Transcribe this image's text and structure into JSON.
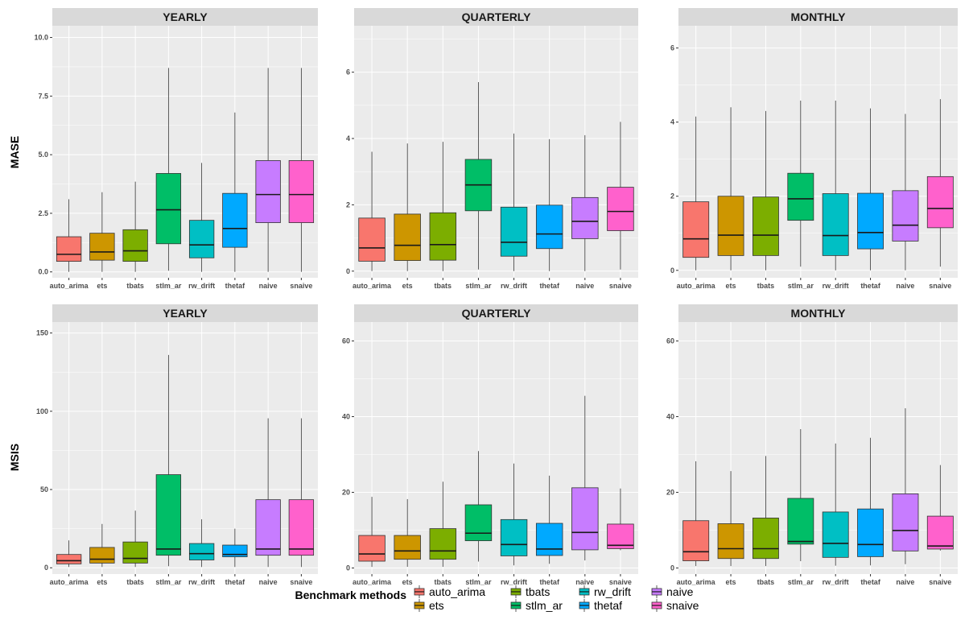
{
  "legend": {
    "title": "Benchmark methods",
    "items": [
      {
        "name": "auto_arima",
        "color": "#F8766D"
      },
      {
        "name": "ets",
        "color": "#CD9600"
      },
      {
        "name": "tbats",
        "color": "#7CAE00"
      },
      {
        "name": "stlm_ar",
        "color": "#00BE67"
      },
      {
        "name": "rw_drift",
        "color": "#00BFC4"
      },
      {
        "name": "thetaf",
        "color": "#00A9FF"
      },
      {
        "name": "naive",
        "color": "#C77CFF"
      },
      {
        "name": "snaive",
        "color": "#FF61CC"
      }
    ]
  },
  "style": {
    "panel_bg": "#EBEBEB",
    "strip_bg": "#D9D9D9",
    "grid_color": "#FFFFFF"
  },
  "chart_data": [
    {
      "type": "boxplot",
      "row_label": "MASE",
      "title": "YEARLY",
      "categories": [
        "auto_arima",
        "ets",
        "tbats",
        "stlm_ar",
        "rw_drift",
        "thetaf",
        "naive",
        "snaive"
      ],
      "ylim": [
        -0.25,
        10.5
      ],
      "yticks": [
        0,
        2.5,
        5,
        7.5,
        10
      ],
      "ytick_labels": [
        "0.0",
        "2.5",
        "5.0",
        "7.5",
        "10.0"
      ],
      "boxes": [
        {
          "lower": 0.0,
          "q1": 0.45,
          "median": 0.75,
          "q3": 1.5,
          "upper": 3.1
        },
        {
          "lower": 0.0,
          "q1": 0.5,
          "median": 0.85,
          "q3": 1.65,
          "upper": 3.4
        },
        {
          "lower": 0.0,
          "q1": 0.45,
          "median": 0.9,
          "q3": 1.8,
          "upper": 3.85
        },
        {
          "lower": 0.05,
          "q1": 1.2,
          "median": 2.65,
          "q3": 4.2,
          "upper": 8.7
        },
        {
          "lower": 0.0,
          "q1": 0.6,
          "median": 1.15,
          "q3": 2.2,
          "upper": 4.65
        },
        {
          "lower": 0.0,
          "q1": 1.05,
          "median": 1.85,
          "q3": 3.35,
          "upper": 6.8
        },
        {
          "lower": 0.0,
          "q1": 2.1,
          "median": 3.3,
          "q3": 4.75,
          "upper": 8.7
        },
        {
          "lower": 0.0,
          "q1": 2.1,
          "median": 3.3,
          "q3": 4.75,
          "upper": 8.7
        }
      ]
    },
    {
      "type": "boxplot",
      "row_label": "MASE",
      "title": "QUARTERLY",
      "categories": [
        "auto_arima",
        "ets",
        "tbats",
        "stlm_ar",
        "rw_drift",
        "thetaf",
        "naive",
        "snaive"
      ],
      "ylim": [
        -0.2,
        7.4
      ],
      "yticks": [
        0,
        2,
        4,
        6
      ],
      "ytick_labels": [
        "0",
        "2",
        "4",
        "6"
      ],
      "boxes": [
        {
          "lower": 0.0,
          "q1": 0.3,
          "median": 0.7,
          "q3": 1.6,
          "upper": 3.6
        },
        {
          "lower": 0.0,
          "q1": 0.32,
          "median": 0.78,
          "q3": 1.72,
          "upper": 3.85
        },
        {
          "lower": 0.0,
          "q1": 0.33,
          "median": 0.8,
          "q3": 1.76,
          "upper": 3.9
        },
        {
          "lower": 0.05,
          "q1": 1.82,
          "median": 2.6,
          "q3": 3.37,
          "upper": 5.7
        },
        {
          "lower": 0.0,
          "q1": 0.45,
          "median": 0.87,
          "q3": 1.93,
          "upper": 4.15
        },
        {
          "lower": 0.0,
          "q1": 0.68,
          "median": 1.12,
          "q3": 1.99,
          "upper": 3.98
        },
        {
          "lower": 0.0,
          "q1": 0.98,
          "median": 1.5,
          "q3": 2.22,
          "upper": 4.1
        },
        {
          "lower": 0.05,
          "q1": 1.22,
          "median": 1.8,
          "q3": 2.53,
          "upper": 4.5
        }
      ]
    },
    {
      "type": "boxplot",
      "row_label": "MASE",
      "title": "MONTHLY",
      "categories": [
        "auto_arima",
        "ets",
        "tbats",
        "stlm_ar",
        "rw_drift",
        "thetaf",
        "naive",
        "snaive"
      ],
      "ylim": [
        -0.2,
        6.6
      ],
      "yticks": [
        0,
        2,
        4,
        6
      ],
      "ytick_labels": [
        "0",
        "2",
        "4",
        "6"
      ],
      "boxes": [
        {
          "lower": 0.0,
          "q1": 0.35,
          "median": 0.85,
          "q3": 1.85,
          "upper": 4.15
        },
        {
          "lower": 0.0,
          "q1": 0.4,
          "median": 0.95,
          "q3": 2.0,
          "upper": 4.4
        },
        {
          "lower": 0.0,
          "q1": 0.4,
          "median": 0.95,
          "q3": 1.98,
          "upper": 4.3
        },
        {
          "lower": 0.1,
          "q1": 1.35,
          "median": 1.93,
          "q3": 2.62,
          "upper": 4.58
        },
        {
          "lower": 0.0,
          "q1": 0.4,
          "median": 0.94,
          "q3": 2.07,
          "upper": 4.58
        },
        {
          "lower": 0.0,
          "q1": 0.58,
          "median": 1.02,
          "q3": 2.08,
          "upper": 4.37
        },
        {
          "lower": 0.0,
          "q1": 0.79,
          "median": 1.22,
          "q3": 2.15,
          "upper": 4.22
        },
        {
          "lower": 0.1,
          "q1": 1.15,
          "median": 1.67,
          "q3": 2.53,
          "upper": 4.62
        }
      ]
    },
    {
      "type": "boxplot",
      "row_label": "MSIS",
      "title": "YEARLY",
      "categories": [
        "auto_arima",
        "ets",
        "tbats",
        "stlm_ar",
        "rw_drift",
        "thetaf",
        "naive",
        "snaive"
      ],
      "ylim": [
        -4,
        157
      ],
      "yticks": [
        0,
        50,
        100,
        150
      ],
      "ytick_labels": [
        "0",
        "50",
        "100",
        "150"
      ],
      "boxes": [
        {
          "lower": 0.5,
          "q1": 2.5,
          "median": 4.5,
          "q3": 8.5,
          "upper": 17.5
        },
        {
          "lower": 0.5,
          "q1": 3.0,
          "median": 5.5,
          "q3": 13.0,
          "upper": 28.0
        },
        {
          "lower": 0.5,
          "q1": 3.0,
          "median": 6.0,
          "q3": 16.5,
          "upper": 36.5
        },
        {
          "lower": 1.0,
          "q1": 8.0,
          "median": 12.0,
          "q3": 59.5,
          "upper": 136.0
        },
        {
          "lower": 0.5,
          "q1": 5.0,
          "median": 9.0,
          "q3": 15.5,
          "upper": 31.0
        },
        {
          "lower": 0.5,
          "q1": 7.0,
          "median": 8.5,
          "q3": 14.5,
          "upper": 25.0
        },
        {
          "lower": 0.5,
          "q1": 8.0,
          "median": 12.0,
          "q3": 43.5,
          "upper": 95.5
        },
        {
          "lower": 0.5,
          "q1": 8.0,
          "median": 12.0,
          "q3": 43.5,
          "upper": 95.5
        }
      ]
    },
    {
      "type": "boxplot",
      "row_label": "MSIS",
      "title": "QUARTERLY",
      "categories": [
        "auto_arima",
        "ets",
        "tbats",
        "stlm_ar",
        "rw_drift",
        "thetaf",
        "naive",
        "snaive"
      ],
      "ylim": [
        -1.6,
        65
      ],
      "yticks": [
        0,
        20,
        40,
        60
      ],
      "ytick_labels": [
        "0",
        "20",
        "40",
        "60"
      ],
      "boxes": [
        {
          "lower": 0.3,
          "q1": 1.8,
          "median": 3.7,
          "q3": 8.6,
          "upper": 18.8
        },
        {
          "lower": 0.3,
          "q1": 2.3,
          "median": 4.5,
          "q3": 8.6,
          "upper": 18.2
        },
        {
          "lower": 0.3,
          "q1": 2.3,
          "median": 4.5,
          "q3": 10.4,
          "upper": 22.8
        },
        {
          "lower": 1.7,
          "q1": 7.2,
          "median": 9.2,
          "q3": 16.7,
          "upper": 30.9
        },
        {
          "lower": 0.7,
          "q1": 3.2,
          "median": 6.2,
          "q3": 12.8,
          "upper": 27.6
        },
        {
          "lower": 1.1,
          "q1": 3.3,
          "median": 5.0,
          "q3": 11.8,
          "upper": 24.4
        },
        {
          "lower": 2.0,
          "q1": 4.8,
          "median": 9.4,
          "q3": 21.2,
          "upper": 45.5
        },
        {
          "lower": 4.7,
          "q1": 5.1,
          "median": 6.0,
          "q3": 11.6,
          "upper": 21.0
        }
      ]
    },
    {
      "type": "boxplot",
      "row_label": "MSIS",
      "title": "MONTHLY",
      "categories": [
        "auto_arima",
        "ets",
        "tbats",
        "stlm_ar",
        "rw_drift",
        "thetaf",
        "naive",
        "snaive"
      ],
      "ylim": [
        -1.6,
        65
      ],
      "yticks": [
        0,
        20,
        40,
        60
      ],
      "ytick_labels": [
        "0",
        "20",
        "40",
        "60"
      ],
      "boxes": [
        {
          "lower": 0.5,
          "q1": 1.9,
          "median": 4.3,
          "q3": 12.5,
          "upper": 28.2
        },
        {
          "lower": 0.5,
          "q1": 2.5,
          "median": 5.1,
          "q3": 11.7,
          "upper": 25.6
        },
        {
          "lower": 0.5,
          "q1": 2.5,
          "median": 5.1,
          "q3": 13.2,
          "upper": 29.6
        },
        {
          "lower": 1.8,
          "q1": 6.3,
          "median": 7.0,
          "q3": 18.4,
          "upper": 36.7
        },
        {
          "lower": 0.6,
          "q1": 2.8,
          "median": 6.5,
          "q3": 14.8,
          "upper": 32.9
        },
        {
          "lower": 0.7,
          "q1": 3.0,
          "median": 6.2,
          "q3": 15.6,
          "upper": 34.4
        },
        {
          "lower": 1.0,
          "q1": 4.5,
          "median": 9.9,
          "q3": 19.6,
          "upper": 42.2
        },
        {
          "lower": 4.6,
          "q1": 5.0,
          "median": 5.8,
          "q3": 13.7,
          "upper": 27.2
        }
      ]
    }
  ]
}
